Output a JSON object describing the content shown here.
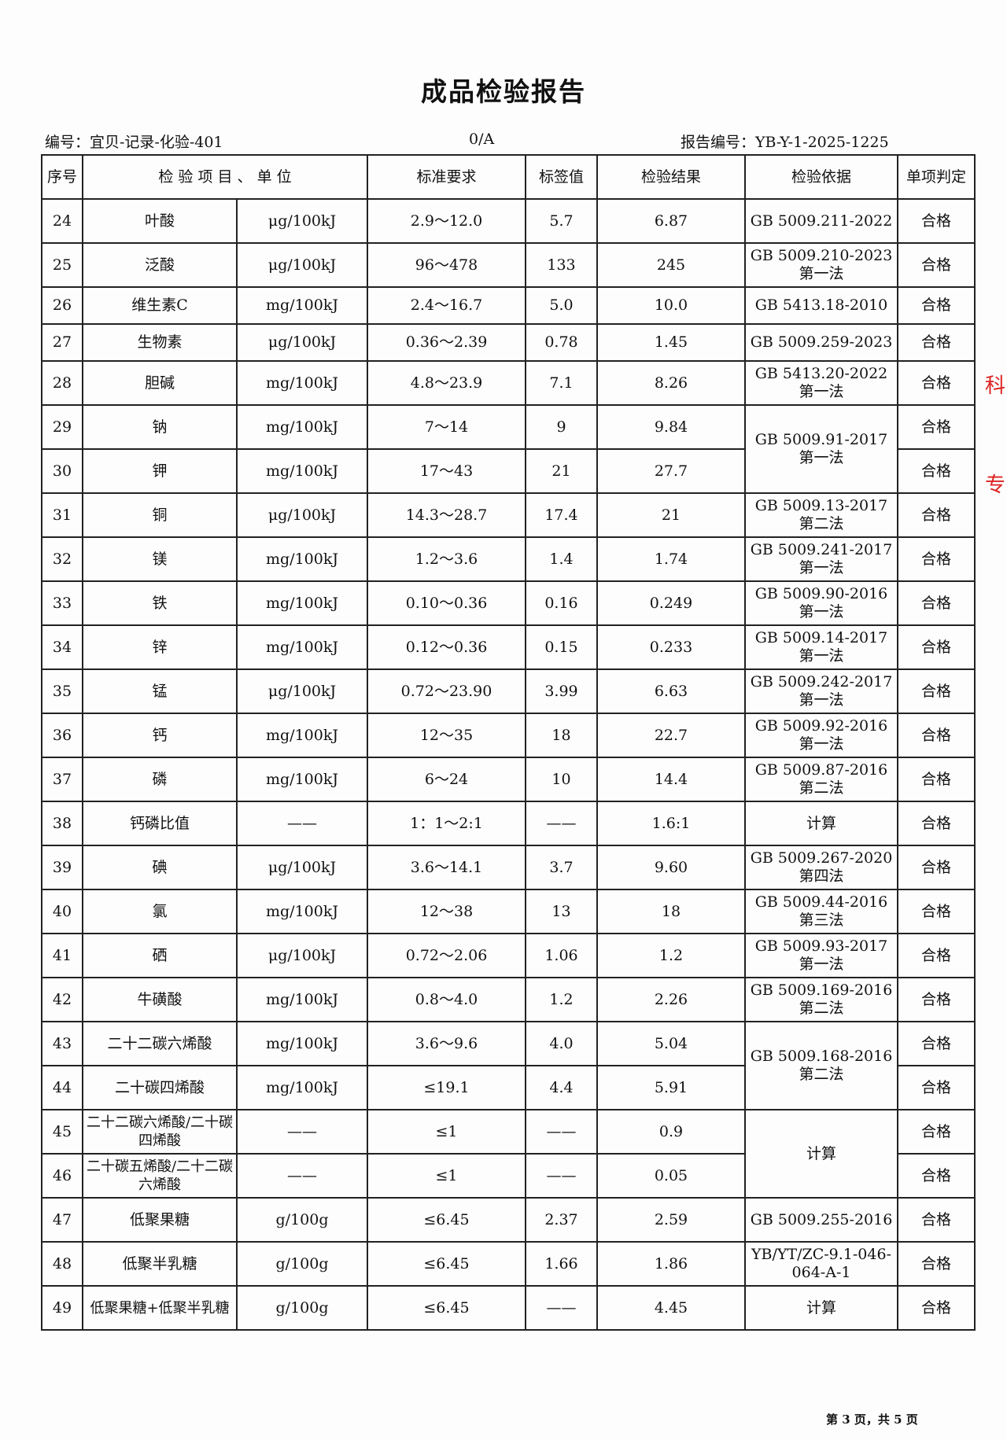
{
  "title": "成品检验报告",
  "header": {
    "code": "编号：宜贝-记录-化验-401",
    "version": "0/A",
    "report_no": "报告编号：YB-Y-1-2025-1225"
  },
  "columns": [
    "序号",
    "检 验 项 目 、 单 位",
    "标准要求",
    "标签值",
    "检验结果",
    "检验依据",
    "单项判定"
  ],
  "rows": [
    {
      "no": "24",
      "item": "叶酸",
      "unit": "μg/100kJ",
      "std": "2.9～12.0",
      "label": "5.7",
      "result": "6.87",
      "basis": "GB 5009.211-2022",
      "verdict": "合格"
    },
    {
      "no": "25",
      "item": "泛酸",
      "unit": "μg/100kJ",
      "std": "96～478",
      "label": "133",
      "result": "245",
      "basis": "GB 5009.210-2023 第一法",
      "verdict": "合格"
    },
    {
      "no": "26",
      "item": "维生素C",
      "unit": "mg/100kJ",
      "std": "2.4～16.7",
      "label": "5.0",
      "result": "10.0",
      "basis": "GB 5413.18-2010",
      "verdict": "合格"
    },
    {
      "no": "27",
      "item": "生物素",
      "unit": "μg/100kJ",
      "std": "0.36～2.39",
      "label": "0.78",
      "result": "1.45",
      "basis": "GB 5009.259-2023",
      "verdict": "合格"
    },
    {
      "no": "28",
      "item": "胆碱",
      "unit": "mg/100kJ",
      "std": "4.8～23.9",
      "label": "7.1",
      "result": "8.26",
      "basis": "GB 5413.20-2022 第一法",
      "verdict": "合格"
    },
    {
      "no": "29",
      "item": "钠",
      "unit": "mg/100kJ",
      "std": "7～14",
      "label": "9",
      "result": "9.84",
      "basis": "GB 5009.91-2017 第一法",
      "verdict": "合格"
    },
    {
      "no": "30",
      "item": "钾",
      "unit": "mg/100kJ",
      "std": "17～43",
      "label": "21",
      "result": "27.7",
      "basis": "",
      "verdict": "合格"
    },
    {
      "no": "31",
      "item": "铜",
      "unit": "μg/100kJ",
      "std": "14.3～28.7",
      "label": "17.4",
      "result": "21",
      "basis": "GB 5009.13-2017 第二法",
      "verdict": "合格"
    },
    {
      "no": "32",
      "item": "镁",
      "unit": "mg/100kJ",
      "std": "1.2～3.6",
      "label": "1.4",
      "result": "1.74",
      "basis": "GB 5009.241-2017 第一法",
      "verdict": "合格"
    },
    {
      "no": "33",
      "item": "铁",
      "unit": "mg/100kJ",
      "std": "0.10～0.36",
      "label": "0.16",
      "result": "0.249",
      "basis": "GB 5009.90-2016 第一法",
      "verdict": "合格"
    },
    {
      "no": "34",
      "item": "锌",
      "unit": "mg/100kJ",
      "std": "0.12～0.36",
      "label": "0.15",
      "result": "0.233",
      "basis": "GB 5009.14-2017 第一法",
      "verdict": "合格"
    },
    {
      "no": "35",
      "item": "锰",
      "unit": "μg/100kJ",
      "std": "0.72～23.90",
      "label": "3.99",
      "result": "6.63",
      "basis": "GB 5009.242-2017 第一法",
      "verdict": "合格"
    },
    {
      "no": "36",
      "item": "钙",
      "unit": "mg/100kJ",
      "std": "12～35",
      "label": "18",
      "result": "22.7",
      "basis": "GB 5009.92-2016 第一法",
      "verdict": "合格"
    },
    {
      "no": "37",
      "item": "磷",
      "unit": "mg/100kJ",
      "std": "6～24",
      "label": "10",
      "result": "14.4",
      "basis": "GB 5009.87-2016 第二法",
      "verdict": "合格"
    },
    {
      "no": "38",
      "item": "钙磷比值",
      "unit": "——",
      "std": "1：1～2:1",
      "label": "——",
      "result": "1.6:1",
      "basis": "计算",
      "verdict": "合格"
    },
    {
      "no": "39",
      "item": "碘",
      "unit": "μg/100kJ",
      "std": "3.6～14.1",
      "label": "3.7",
      "result": "9.60",
      "basis": "GB 5009.267-2020 第四法",
      "verdict": "合格"
    },
    {
      "no": "40",
      "item": "氯",
      "unit": "mg/100kJ",
      "std": "12～38",
      "label": "13",
      "result": "18",
      "basis": "GB 5009.44-2016 第三法",
      "verdict": "合格"
    },
    {
      "no": "41",
      "item": "硒",
      "unit": "μg/100kJ",
      "std": "0.72～2.06",
      "label": "1.06",
      "result": "1.2",
      "basis": "GB 5009.93-2017 第一法",
      "verdict": "合格"
    },
    {
      "no": "42",
      "item": "牛磺酸",
      "unit": "mg/100kJ",
      "std": "0.8～4.0",
      "label": "1.2",
      "result": "2.26",
      "basis": "GB 5009.169-2016 第二法",
      "verdict": "合格"
    },
    {
      "no": "43",
      "item": "二十二碳六烯酸",
      "unit": "mg/100kJ",
      "std": "3.6～9.6",
      "label": "4.0",
      "result": "5.04",
      "basis": "GB 5009.168-2016 第二法",
      "verdict": "合格"
    },
    {
      "no": "44",
      "item": "二十碳四烯酸",
      "unit": "mg/100kJ",
      "std": "≤19.1",
      "label": "4.4",
      "result": "5.91",
      "basis": "",
      "verdict": "合格"
    },
    {
      "no": "45",
      "item": "二十二碳六烯酸/二十碳四烯酸",
      "unit": "——",
      "std": "≤1",
      "label": "——",
      "result": "0.9",
      "basis": "计算",
      "verdict": "合格"
    },
    {
      "no": "46",
      "item": "二十碳五烯酸/二十二碳六烯酸",
      "unit": "——",
      "std": "≤1",
      "label": "——",
      "result": "0.05",
      "basis": "",
      "verdict": "合格"
    },
    {
      "no": "47",
      "item": "低聚果糖",
      "unit": "g/100g",
      "std": "≤6.45",
      "label": "2.37",
      "result": "2.59",
      "basis": "GB 5009.255-2016",
      "verdict": "合格"
    },
    {
      "no": "48",
      "item": "低聚半乳糖",
      "unit": "g/100g",
      "std": "≤6.45",
      "label": "1.66",
      "result": "1.86",
      "basis": "YB/YT/ZC-9.1-046-064-A-1",
      "verdict": "合格"
    },
    {
      "no": "49",
      "item": "低聚果糖+低聚半乳糖",
      "unit": "g/100g",
      "std": "≤6.45",
      "label": "——",
      "result": "4.45",
      "basis": "计算",
      "verdict": "合格"
    }
  ],
  "footer": {
    "page": "第 3 页，共 5 页"
  },
  "margin_marks": [
    "科",
    "专"
  ]
}
